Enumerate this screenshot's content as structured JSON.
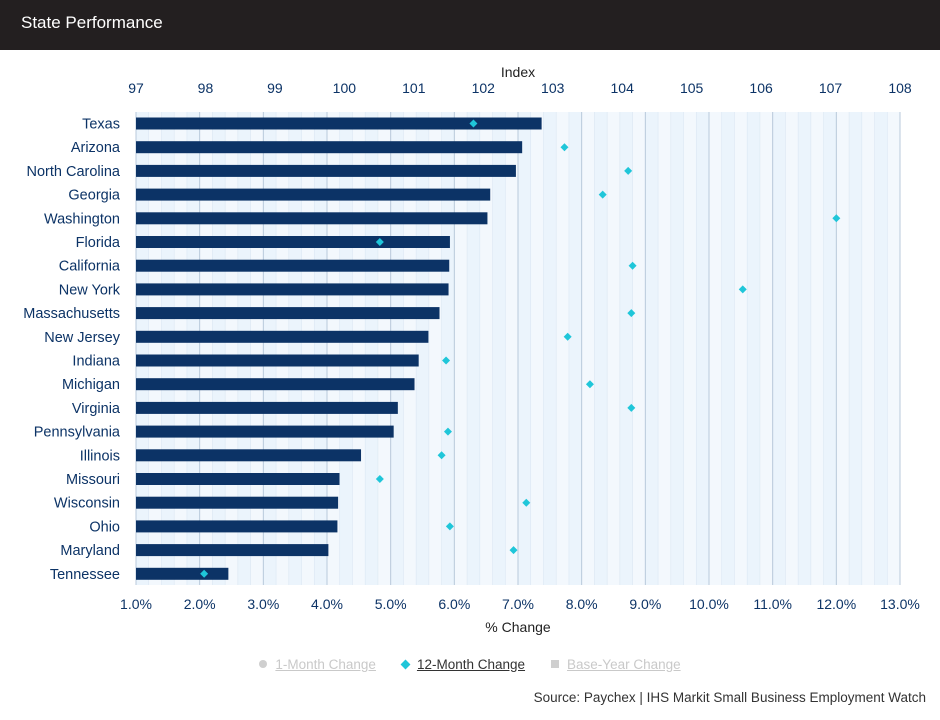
{
  "header": {
    "title": "State Performance"
  },
  "legend": {
    "items": [
      {
        "label": "1-Month Change",
        "active": false,
        "icon": "circle-icon"
      },
      {
        "label": "12-Month Change",
        "active": true,
        "icon": "diamond-icon"
      },
      {
        "label": "Base-Year Change",
        "active": false,
        "icon": "square-icon"
      }
    ]
  },
  "source": "Source: Paychex | IHS Markit Small Business Employment Watch",
  "colors": {
    "bar": "#0c3366",
    "marker": "#1fc6d9",
    "grid": "#cfd8e3",
    "plot_bg": "#f3f8fd",
    "band": "#e6f1fb"
  },
  "chart_data": {
    "type": "bar",
    "orientation": "horizontal",
    "categories": [
      "Texas",
      "Arizona",
      "North Carolina",
      "Georgia",
      "Washington",
      "Florida",
      "California",
      "New York",
      "Massachusetts",
      "New Jersey",
      "Indiana",
      "Michigan",
      "Virginia",
      "Pennsylvania",
      "Illinois",
      "Missouri",
      "Wisconsin",
      "Ohio",
      "Maryland",
      "Tennessee"
    ],
    "top_axis": {
      "label": "Index",
      "range": [
        97,
        108
      ],
      "ticks": [
        "97",
        "98",
        "99",
        "100",
        "101",
        "102",
        "103",
        "104",
        "105",
        "106",
        "107",
        "108"
      ]
    },
    "bottom_axis": {
      "label": "% Change",
      "range": [
        1.0,
        13.0
      ],
      "ticks": [
        "1.0%",
        "2.0%",
        "3.0%",
        "4.0%",
        "5.0%",
        "6.0%",
        "7.0%",
        "8.0%",
        "9.0%",
        "10.0%",
        "11.0%",
        "12.0%",
        "13.0%"
      ]
    },
    "series": [
      {
        "name": "Index",
        "axis": "top",
        "values": [
          102.84,
          102.56,
          102.47,
          102.1,
          102.06,
          101.52,
          101.51,
          101.5,
          101.37,
          101.21,
          101.07,
          101.01,
          100.77,
          100.71,
          100.24,
          99.93,
          99.91,
          99.9,
          99.77,
          98.33
        ]
      },
      {
        "name": "12-Month Change",
        "axis": "bottom",
        "values": [
          6.3,
          7.73,
          8.73,
          8.33,
          12.0,
          4.83,
          8.8,
          10.53,
          8.78,
          7.78,
          5.87,
          8.13,
          8.78,
          5.9,
          5.8,
          4.83,
          7.13,
          5.93,
          6.93,
          2.07
        ]
      }
    ],
    "grid": true,
    "legend_position": "bottom"
  }
}
